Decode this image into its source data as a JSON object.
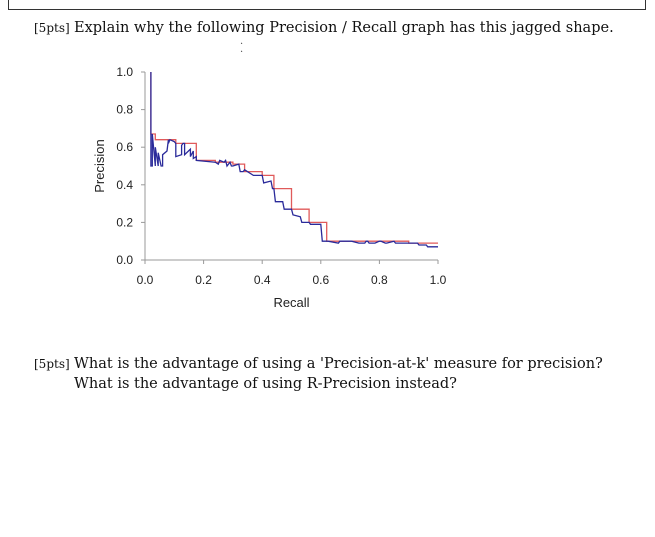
{
  "questions": [
    {
      "points": "[5pts]",
      "lines": [
        "Explain why the following Precision / Recall graph has this jagged shape."
      ]
    },
    {
      "points": "[5pts]",
      "lines": [
        "What is the advantage of using a 'Precision-at-k' measure for precision?",
        "What is the advantage of using R-Precision instead?"
      ]
    }
  ],
  "chart_data": {
    "type": "line",
    "xlabel": "Recall",
    "ylabel": "Precision",
    "xlim": [
      0,
      1
    ],
    "ylim": [
      0,
      1
    ],
    "xticks": [
      "0.0",
      "0.2",
      "0.4",
      "0.6",
      "0.8",
      "1.0"
    ],
    "yticks": [
      "0.0",
      "0.2",
      "0.4",
      "0.6",
      "0.8",
      "1.0"
    ],
    "grid": false,
    "series": [
      {
        "color": "#2a2a9a",
        "x": [
          0.02,
          0.02,
          0.025,
          0.025,
          0.035,
          0.035,
          0.045,
          0.045,
          0.055,
          0.06,
          0.06,
          0.075,
          0.08,
          0.08,
          0.085,
          0.1,
          0.105,
          0.105,
          0.125,
          0.125,
          0.13,
          0.135,
          0.135,
          0.155,
          0.155,
          0.165,
          0.165,
          0.175,
          0.175,
          0.24,
          0.25,
          0.255,
          0.27,
          0.275,
          0.28,
          0.29,
          0.295,
          0.3,
          0.32,
          0.325,
          0.335,
          0.34,
          0.37,
          0.375,
          0.4,
          0.405,
          0.43,
          0.435,
          0.44,
          0.445,
          0.47,
          0.475,
          0.5,
          0.505,
          0.53,
          0.535,
          0.56,
          0.565,
          0.6,
          0.605,
          0.62,
          0.625,
          0.66,
          0.665,
          0.7,
          0.705,
          0.73,
          0.735,
          0.75,
          0.755,
          0.76,
          0.765,
          0.78,
          0.785,
          0.8,
          0.805,
          0.82,
          0.825,
          0.85,
          0.855,
          0.88,
          0.885,
          0.9,
          0.905,
          0.93,
          0.935,
          0.96,
          0.965,
          0.99,
          1.0
        ],
        "y": [
          1.0,
          0.5,
          0.5,
          0.67,
          0.5,
          0.6,
          0.5,
          0.57,
          0.5,
          0.5,
          0.56,
          0.58,
          0.64,
          0.62,
          0.64,
          0.63,
          0.62,
          0.55,
          0.56,
          0.61,
          0.62,
          0.62,
          0.56,
          0.59,
          0.55,
          0.58,
          0.54,
          0.55,
          0.53,
          0.52,
          0.51,
          0.53,
          0.52,
          0.53,
          0.5,
          0.52,
          0.5,
          0.5,
          0.51,
          0.47,
          0.47,
          0.48,
          0.45,
          0.45,
          0.45,
          0.41,
          0.42,
          0.38,
          0.38,
          0.31,
          0.31,
          0.27,
          0.27,
          0.24,
          0.23,
          0.2,
          0.2,
          0.19,
          0.19,
          0.1,
          0.1,
          0.1,
          0.09,
          0.1,
          0.1,
          0.1,
          0.09,
          0.09,
          0.09,
          0.1,
          0.1,
          0.09,
          0.09,
          0.09,
          0.1,
          0.1,
          0.09,
          0.09,
          0.1,
          0.09,
          0.09,
          0.09,
          0.09,
          0.09,
          0.09,
          0.08,
          0.08,
          0.07,
          0.07,
          0.07
        ]
      },
      {
        "color": "#e05a5a",
        "x": [
          0.02,
          0.02,
          0.035,
          0.035,
          0.055,
          0.055,
          0.075,
          0.075,
          0.105,
          0.105,
          0.155,
          0.155,
          0.175,
          0.175,
          0.24,
          0.24,
          0.27,
          0.27,
          0.3,
          0.3,
          0.34,
          0.34,
          0.4,
          0.4,
          0.44,
          0.44,
          0.5,
          0.5,
          0.56,
          0.56,
          0.62,
          0.62,
          0.66,
          0.66,
          0.7,
          0.7,
          0.8,
          0.8,
          0.9,
          0.9,
          1.0
        ],
        "y": [
          1.0,
          0.67,
          0.67,
          0.64,
          0.64,
          0.64,
          0.64,
          0.64,
          0.64,
          0.62,
          0.62,
          0.62,
          0.62,
          0.53,
          0.53,
          0.52,
          0.52,
          0.52,
          0.52,
          0.51,
          0.51,
          0.47,
          0.47,
          0.45,
          0.45,
          0.38,
          0.38,
          0.27,
          0.27,
          0.2,
          0.2,
          0.1,
          0.1,
          0.1,
          0.1,
          0.1,
          0.1,
          0.1,
          0.1,
          0.09,
          0.09
        ]
      }
    ]
  }
}
